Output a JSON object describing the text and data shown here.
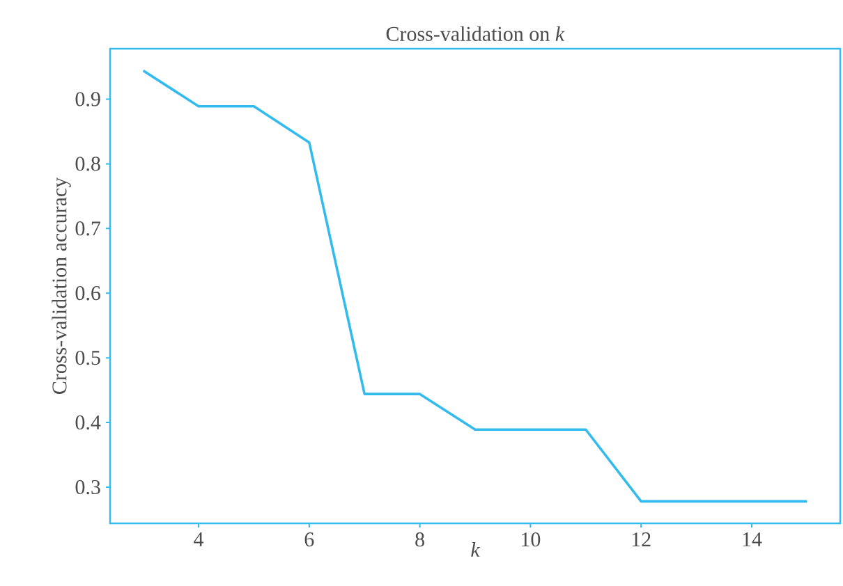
{
  "chart_data": {
    "type": "line",
    "title": "Cross-validation on *k*",
    "xlabel": "k",
    "ylabel": "Cross-validation accuracy",
    "x": [
      3,
      4,
      5,
      6,
      7,
      8,
      9,
      10,
      11,
      12,
      13,
      14,
      15
    ],
    "series": [
      {
        "color": "#33bbee",
        "values": [
          0.944,
          0.889,
          0.889,
          0.833,
          0.444,
          0.444,
          0.389,
          0.389,
          0.389,
          0.278,
          0.278,
          0.278,
          0.278
        ]
      }
    ],
    "xlim": [
      2.4,
      15.6
    ],
    "ylim": [
      0.244,
      0.978
    ],
    "xticks": [
      4,
      6,
      8,
      10,
      12,
      14
    ],
    "yticks": [
      0.3,
      0.4,
      0.5,
      0.6,
      0.7,
      0.8,
      0.9
    ],
    "grid": false,
    "marker": "none",
    "line_style": "solid"
  }
}
